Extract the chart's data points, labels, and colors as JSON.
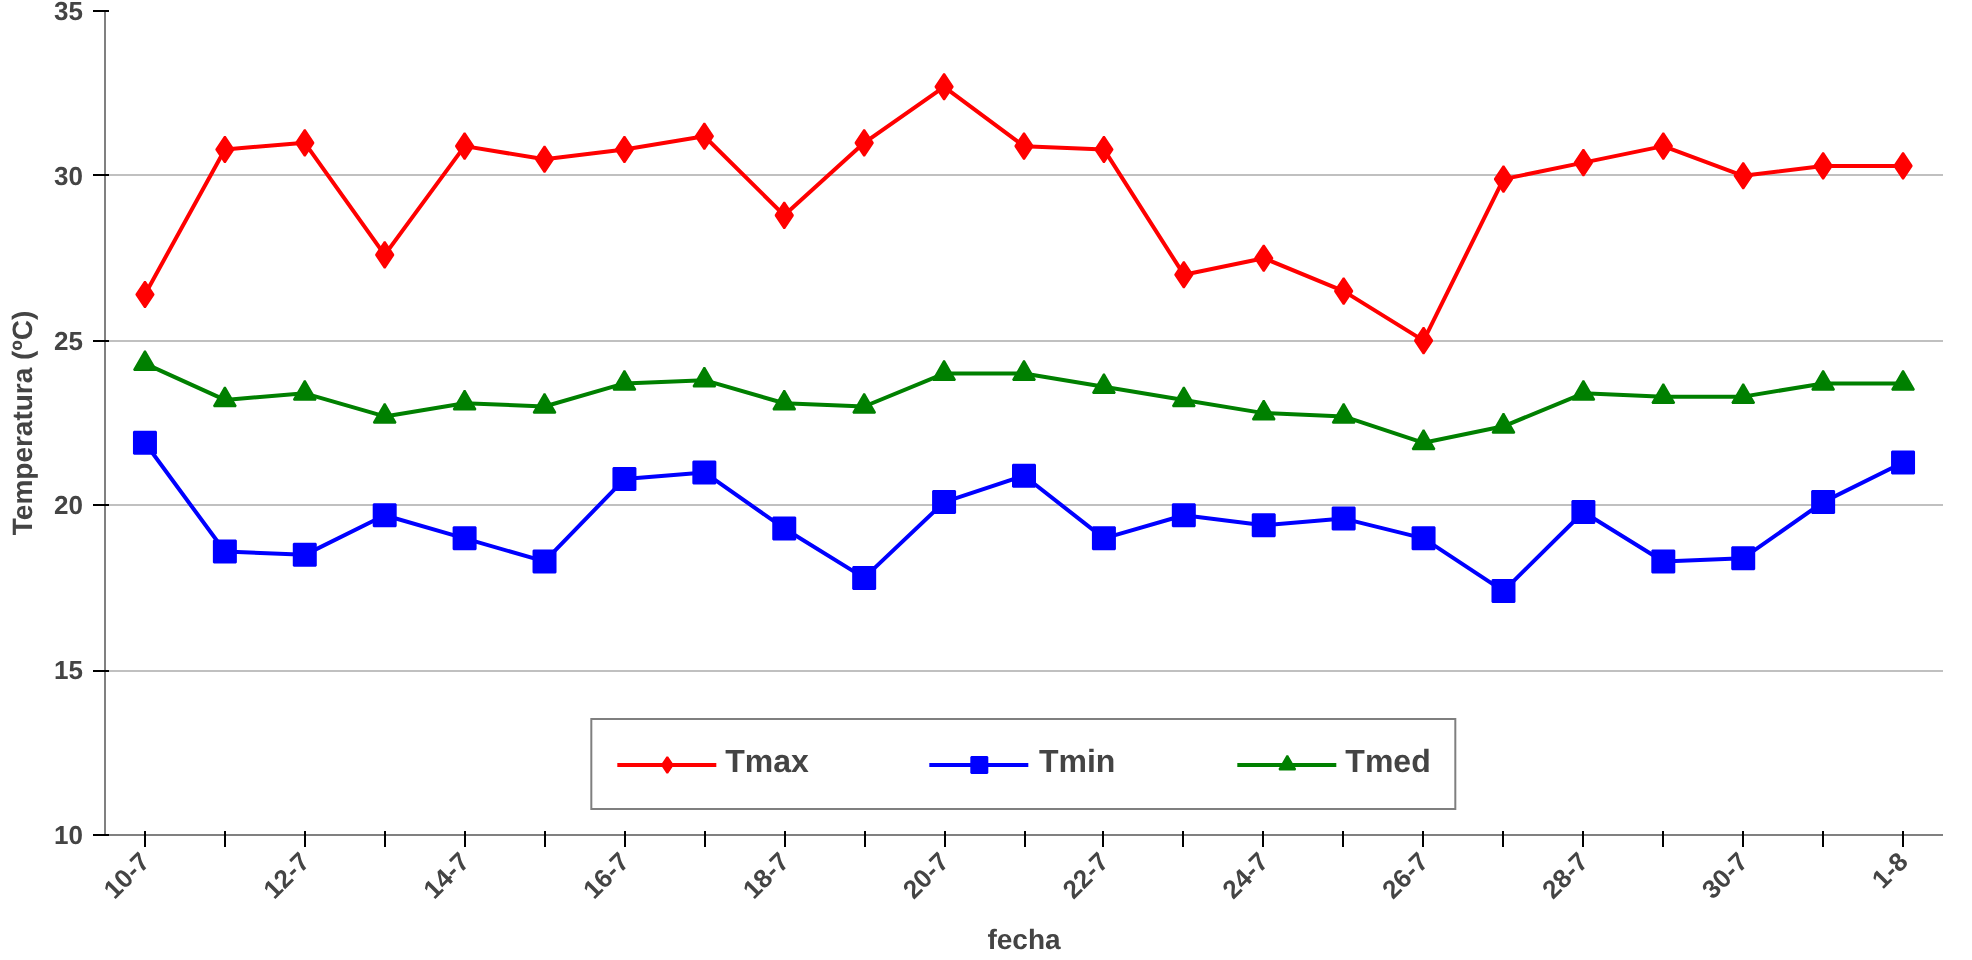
{
  "chart_data": {
    "type": "line",
    "xlabel": "fecha",
    "ylabel": "Temperatura (ºC)",
    "categories": [
      "10-7",
      null,
      "12-7",
      null,
      "14-7",
      null,
      "16-7",
      null,
      "18-7",
      null,
      "20-7",
      null,
      "22-7",
      null,
      "24-7",
      null,
      "26-7",
      null,
      "28-7",
      null,
      "30-7",
      null,
      "1-8"
    ],
    "series": [
      {
        "name": "Tmax",
        "color": "#ff0000",
        "marker": "diamond",
        "values": [
          26.4,
          30.8,
          31.0,
          27.6,
          30.9,
          30.5,
          30.8,
          31.2,
          28.8,
          31.0,
          32.7,
          30.9,
          30.8,
          27.0,
          27.5,
          26.5,
          25.0,
          29.9,
          30.4,
          30.9,
          30.0,
          30.3,
          30.3
        ]
      },
      {
        "name": "Tmin",
        "color": "#0000ff",
        "marker": "square",
        "values": [
          21.9,
          18.6,
          18.5,
          19.7,
          19.0,
          18.3,
          20.8,
          21.0,
          19.3,
          17.8,
          20.1,
          20.9,
          19.0,
          19.7,
          19.4,
          19.6,
          19.0,
          17.4,
          19.8,
          18.3,
          18.4,
          20.1,
          21.3
        ]
      },
      {
        "name": "Tmed",
        "color": "#008000",
        "marker": "triangle",
        "values": [
          24.3,
          23.2,
          23.4,
          22.7,
          23.1,
          23.0,
          23.7,
          23.8,
          23.1,
          23.0,
          24.0,
          24.0,
          23.6,
          23.2,
          22.8,
          22.7,
          21.9,
          22.4,
          23.4,
          23.3,
          23.3,
          23.7,
          23.7
        ]
      }
    ],
    "ylim": [
      10,
      35
    ],
    "yticks": [
      10,
      15,
      20,
      25,
      30,
      35
    ],
    "grid": "y",
    "legend": "bottom",
    "line_style": "solid"
  }
}
